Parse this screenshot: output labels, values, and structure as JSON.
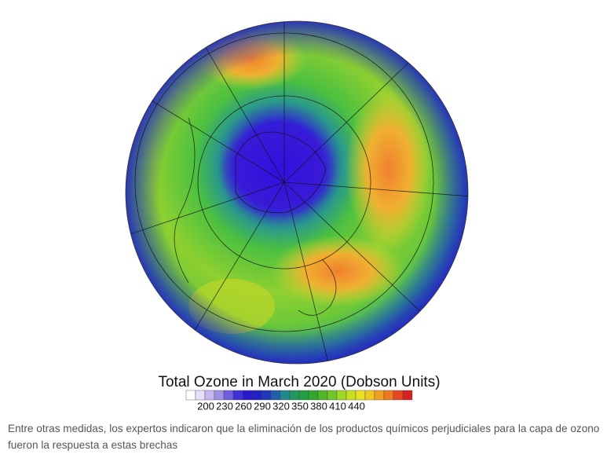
{
  "figure": {
    "title": "Total Ozone in March 2020 (Dobson Units)",
    "colorbar_ticks": [
      200,
      230,
      260,
      290,
      320,
      350,
      380,
      410,
      440
    ]
  },
  "caption": "Entre otras medidas, los expertos indicaron que la eliminación de los productos químicos perjudiciales para la capa de ozono fueron la respuesta a estas brechas"
}
